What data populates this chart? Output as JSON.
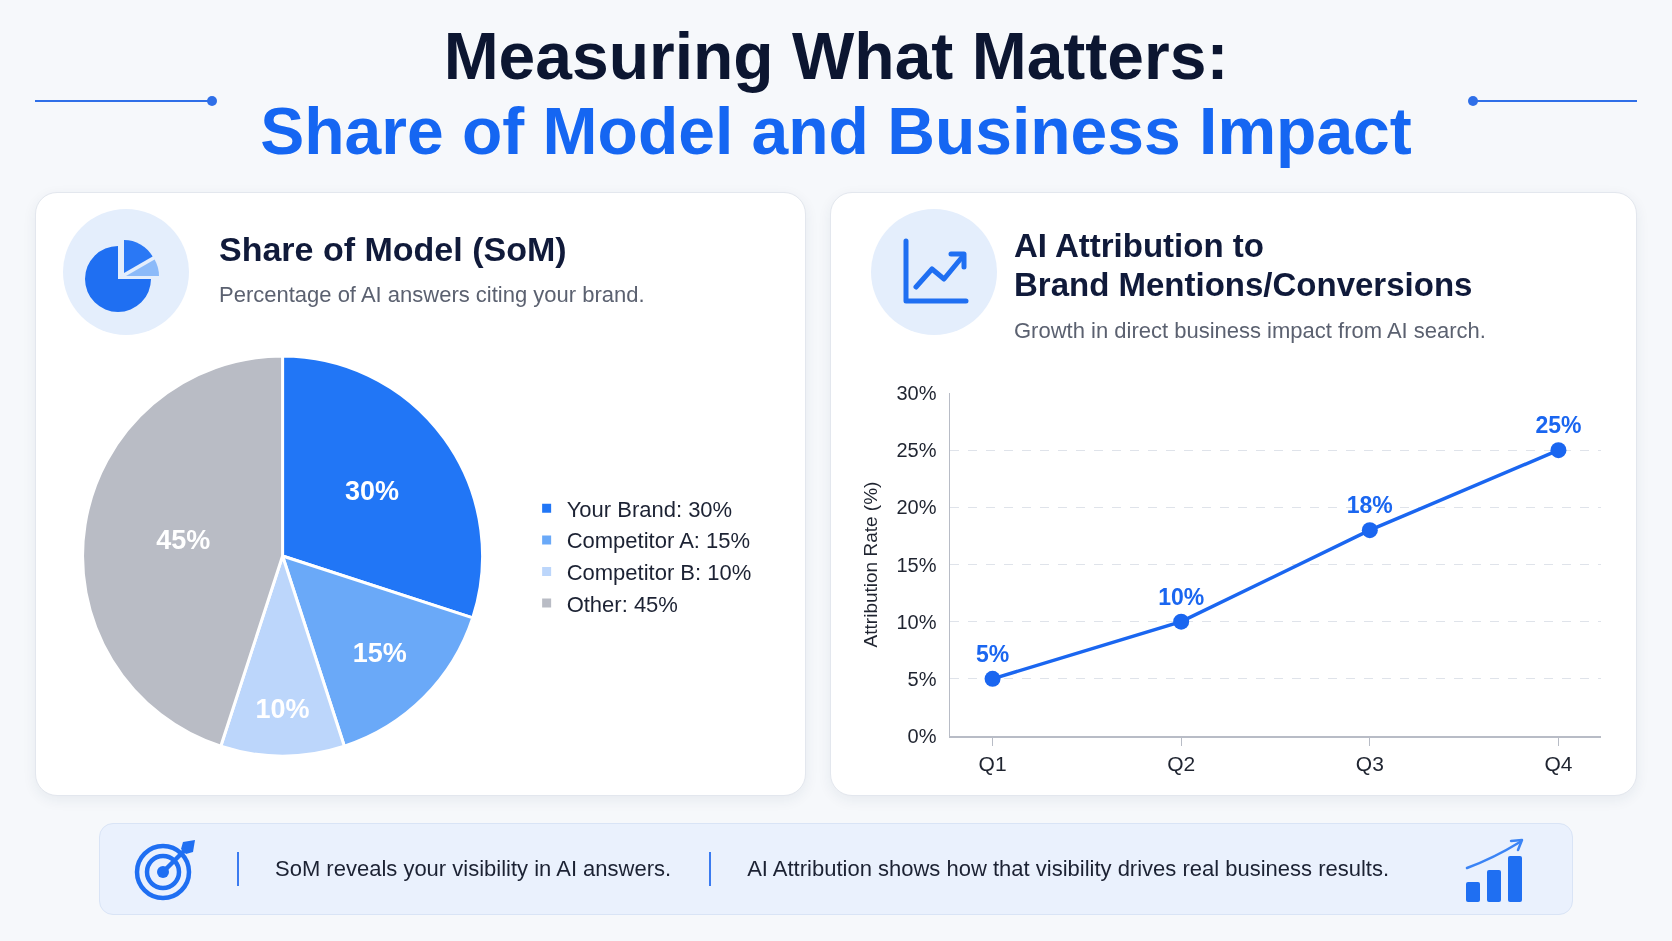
{
  "chart_data": [
    {
      "type": "other",
      "title": "Measuring What Matters:",
      "subtitle": "Share of Model and Business Impact"
    },
    {
      "type": "pie",
      "title": "Share of Model (SoM)",
      "subtitle": "Percentage of AI answers citing your brand.",
      "categories": [
        "Your Brand: 30%",
        "Competitor A: 15%",
        "Competitor B: 10%",
        "Other: 45%"
      ],
      "values": [
        30,
        15,
        10,
        45
      ],
      "colors": [
        "#2176f6",
        "#6aa9f8",
        "#bcd6fb",
        "#b9bcc5"
      ],
      "value_labels": [
        "30%",
        "15%",
        "10%",
        "45%"
      ],
      "legend": "right"
    },
    {
      "type": "line",
      "title": "AI Attribution to\nBrand Mentions/Conversions",
      "subtitle": "Growth in direct business impact from AI search.",
      "ylabel": "Attribution Rate (%)",
      "categories": [
        "Q1",
        "Q2",
        "Q3",
        "Q4"
      ],
      "values": [
        5,
        10,
        18,
        25
      ],
      "color": "#1a66f0",
      "value_labels": [
        "5%",
        "10%",
        "18%",
        "25%"
      ],
      "ylim": [
        0,
        30
      ],
      "yticks": [
        {
          "value": 0,
          "label": "0%"
        },
        {
          "value": 5,
          "label": "5%"
        },
        {
          "value": 10,
          "label": "10%"
        },
        {
          "value": 15,
          "label": "15%"
        },
        {
          "value": 20,
          "label": "20%"
        },
        {
          "value": 25,
          "label": "25%"
        },
        {
          "value": 30,
          "label": "30%"
        }
      ],
      "grid": "y",
      "marker": "circle",
      "line_style": "solid"
    },
    {
      "type": "other",
      "annotations": [
        "SoM reveals your visibility in AI answers.",
        "AI Attribution shows how that visibility drives real business results."
      ]
    }
  ]
}
